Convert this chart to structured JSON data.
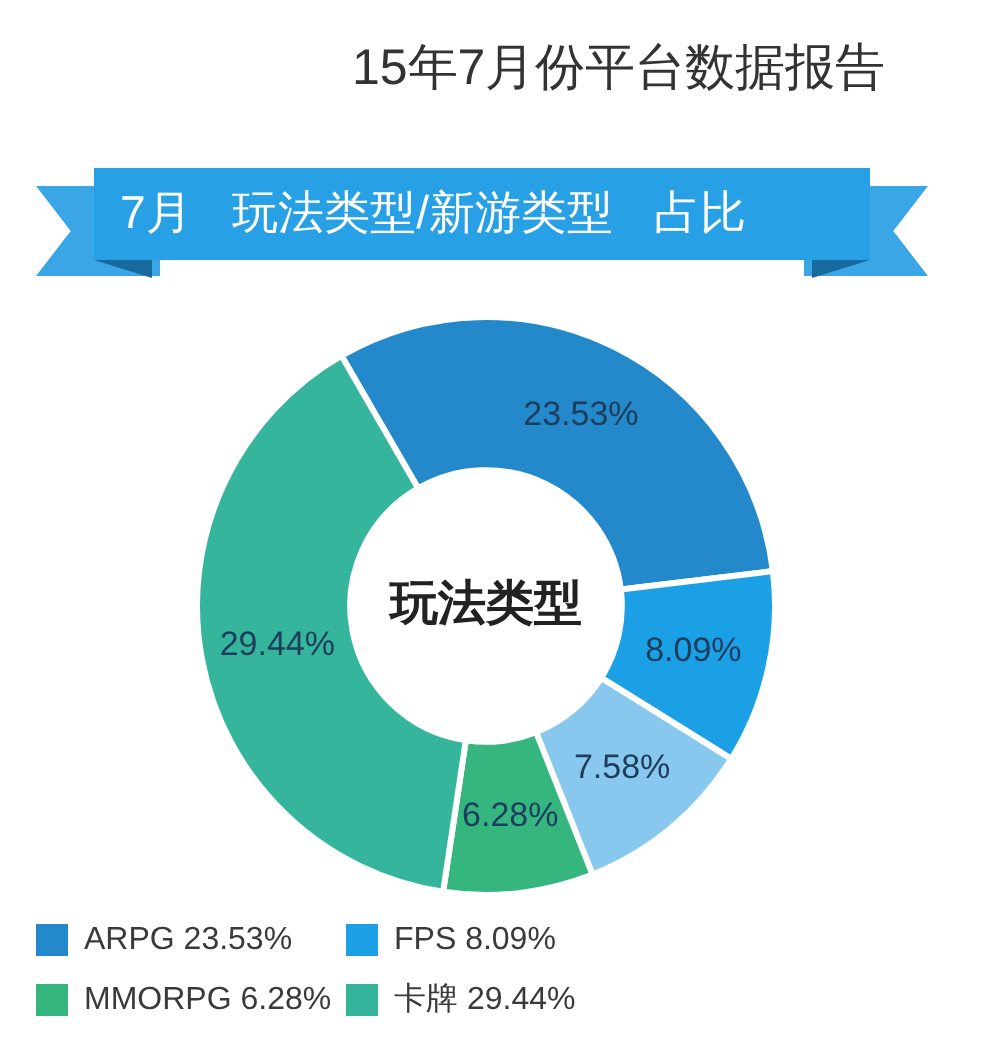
{
  "chart_data": {
    "type": "donut",
    "title": "15年7月份平台数据报告",
    "subtitle": "7月 玩法类型/新游类型 占比",
    "categories": [
      "ARPG",
      "FPS",
      null,
      "MMORPG",
      "卡牌"
    ],
    "values": [
      23.53,
      8.09,
      7.58,
      6.28,
      29.44
    ],
    "colors": [
      "#2389cb",
      "#1ba0e6",
      "#88c8ef",
      "#35b67f",
      "#36b59d"
    ],
    "value_labels": [
      "23.53%",
      "8.09%",
      "7.58%",
      "6.28%",
      "29.44%"
    ],
    "annotations": [
      "玩法类型"
    ],
    "legend": "bottom left"
  }
}
